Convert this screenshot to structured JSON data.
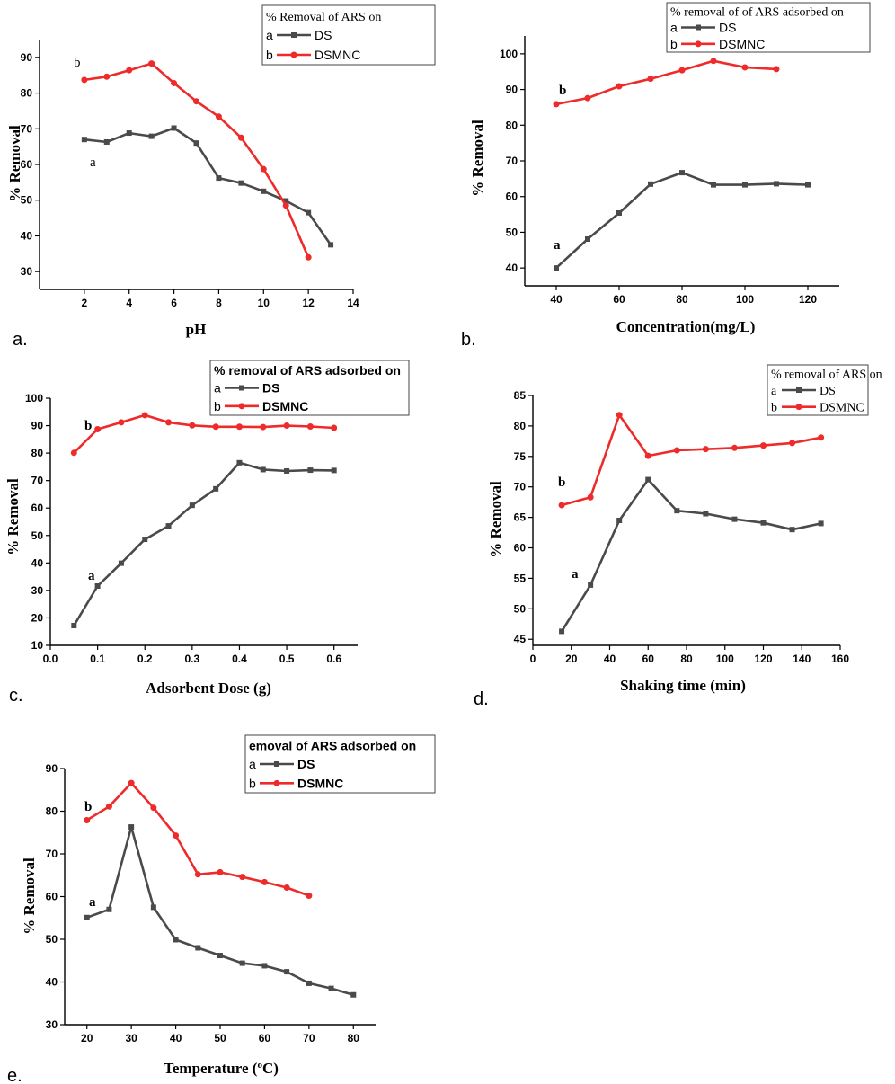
{
  "colors": {
    "ds": "#4a4a4a",
    "dsmnc": "#ee2a2a",
    "axis": "#000000"
  },
  "chart_data": [
    {
      "type": "line",
      "panel_label": "a.",
      "xlabel": "pH",
      "ylabel": "% Removal",
      "xlim": [
        0,
        14
      ],
      "ylim": [
        25,
        95
      ],
      "xticks": [
        2,
        4,
        6,
        8,
        10,
        12,
        14
      ],
      "yticks": [
        30,
        40,
        50,
        60,
        70,
        80,
        90
      ],
      "legend": {
        "title": "% Removal of ARS on",
        "position": "top-right",
        "entries": [
          {
            "key": "a",
            "label": "DS"
          },
          {
            "key": "b",
            "label": "DSMNC"
          }
        ]
      },
      "series": [
        {
          "name": "DS",
          "letter": "a",
          "marker": "square",
          "x": [
            2,
            3,
            4,
            5,
            6,
            7,
            8,
            9,
            10,
            11,
            12,
            13
          ],
          "values": [
            67,
            66.3,
            68.8,
            67.9,
            70.2,
            66,
            56.2,
            54.8,
            52.5,
            49.8,
            46.5,
            37.5
          ]
        },
        {
          "name": "DSMNC",
          "letter": "b",
          "marker": "circle",
          "x": [
            2,
            3,
            4,
            5,
            6,
            7,
            8,
            9,
            10,
            11,
            12
          ],
          "values": [
            83.7,
            84.6,
            86.4,
            88.3,
            82.8,
            77.7,
            73.4,
            67.5,
            58.7,
            48.5,
            34
          ]
        }
      ]
    },
    {
      "type": "line",
      "panel_label": "b.",
      "xlabel": "Concentration(mg/L)",
      "ylabel": "% Removal",
      "xlim": [
        30,
        130
      ],
      "ylim": [
        35,
        105
      ],
      "xticks": [
        40,
        60,
        80,
        100,
        120
      ],
      "yticks": [
        40,
        50,
        60,
        70,
        80,
        90,
        100
      ],
      "legend": {
        "title": "% removal of of ARS adsorbed on",
        "position": "top-right",
        "entries": [
          {
            "key": "a",
            "label": "DS"
          },
          {
            "key": "b",
            "label": "DSMNC"
          }
        ]
      },
      "series": [
        {
          "name": "DS",
          "letter": "a",
          "marker": "square",
          "x": [
            40,
            50,
            60,
            70,
            80,
            90,
            100,
            110,
            120
          ],
          "values": [
            40,
            48.1,
            55.4,
            63.5,
            66.7,
            63.3,
            63.3,
            63.6,
            63.3
          ]
        },
        {
          "name": "DSMNC",
          "letter": "b",
          "marker": "circle",
          "x": [
            40,
            50,
            60,
            70,
            80,
            90,
            100,
            110
          ],
          "values": [
            85.9,
            87.6,
            90.9,
            93,
            95.4,
            98,
            96.2,
            95.7
          ]
        }
      ]
    },
    {
      "type": "line",
      "panel_label": "c.",
      "xlabel": "Adsorbent Dose (g)",
      "ylabel": "% Removal",
      "xlim": [
        0,
        0.65
      ],
      "ylim": [
        10,
        100
      ],
      "xticks": [
        0.0,
        0.1,
        0.2,
        0.3,
        0.4,
        0.5,
        0.6
      ],
      "yticks": [
        10,
        20,
        30,
        40,
        50,
        60,
        70,
        80,
        90,
        100
      ],
      "legend": {
        "title": "% removal  of ARS adsorbed on",
        "position": "top-right",
        "entries": [
          {
            "key": "a",
            "label": "DS"
          },
          {
            "key": "b",
            "label": "DSMNC"
          }
        ]
      },
      "series": [
        {
          "name": "DS",
          "letter": "a",
          "marker": "square",
          "x": [
            0.05,
            0.1,
            0.15,
            0.2,
            0.25,
            0.3,
            0.35,
            0.4,
            0.45,
            0.5,
            0.55,
            0.6
          ],
          "values": [
            17.2,
            31.6,
            39.9,
            48.6,
            53.5,
            61,
            67,
            76.5,
            74,
            73.5,
            73.8,
            73.7
          ]
        },
        {
          "name": "DSMNC",
          "letter": "b",
          "marker": "circle",
          "x": [
            0.05,
            0.1,
            0.15,
            0.2,
            0.25,
            0.3,
            0.35,
            0.4,
            0.45,
            0.5,
            0.55,
            0.6
          ],
          "values": [
            80.1,
            88.7,
            91.2,
            93.8,
            91.2,
            90.1,
            89.6,
            89.6,
            89.5,
            90,
            89.7,
            89.2
          ]
        }
      ]
    },
    {
      "type": "line",
      "panel_label": "d.",
      "xlabel": "Shaking time (min)",
      "ylabel": "% Removal",
      "xlim": [
        0,
        160
      ],
      "ylim": [
        44,
        85
      ],
      "xticks": [
        0,
        20,
        40,
        60,
        80,
        100,
        120,
        140,
        160
      ],
      "yticks": [
        45,
        50,
        55,
        60,
        65,
        70,
        75,
        80,
        85
      ],
      "legend": {
        "title": "% removal of ARS on",
        "position": "top-right",
        "entries": [
          {
            "key": "a",
            "label": "DS"
          },
          {
            "key": "b",
            "label": "DSMNC"
          }
        ]
      },
      "series": [
        {
          "name": "DS",
          "letter": "a",
          "marker": "square",
          "x": [
            15,
            30,
            45,
            60,
            75,
            90,
            105,
            120,
            135,
            150
          ],
          "values": [
            46.3,
            53.9,
            64.5,
            71.2,
            66.1,
            65.6,
            64.7,
            64.1,
            63,
            64
          ]
        },
        {
          "name": "DSMNC",
          "letter": "b",
          "marker": "circle",
          "x": [
            15,
            30,
            45,
            60,
            75,
            90,
            105,
            120,
            135,
            150
          ],
          "values": [
            67,
            68.3,
            81.8,
            75.1,
            76,
            76.2,
            76.4,
            76.8,
            77.2,
            78.1
          ]
        }
      ]
    },
    {
      "type": "line",
      "panel_label": "e.",
      "xlabel": "Temperature (",
      "xlabel_superscript": "o",
      "xlabel_suffix": "C)",
      "ylabel": "% Removal",
      "xlim": [
        15,
        85
      ],
      "ylim": [
        30,
        90
      ],
      "xticks": [
        20,
        30,
        40,
        50,
        60,
        70,
        80
      ],
      "yticks": [
        30,
        40,
        50,
        60,
        70,
        80,
        90
      ],
      "legend": {
        "title": "emoval of ARS adsorbed on",
        "position": "top-right",
        "entries": [
          {
            "key": "a",
            "label": "DS"
          },
          {
            "key": "b",
            "label": "DSMNC"
          }
        ]
      },
      "series": [
        {
          "name": "DS",
          "letter": "a",
          "marker": "square",
          "x": [
            20,
            25,
            30,
            35,
            40,
            45,
            50,
            55,
            60,
            65,
            70,
            75,
            80
          ],
          "values": [
            55.1,
            57,
            76.3,
            57.5,
            49.9,
            48,
            46.2,
            44.4,
            43.8,
            42.4,
            39.7,
            38.5,
            37
          ]
        },
        {
          "name": "DSMNC",
          "letter": "b",
          "marker": "circle",
          "x": [
            20,
            25,
            30,
            35,
            40,
            45,
            50,
            55,
            60,
            65,
            70
          ],
          "values": [
            77.9,
            81.1,
            86.6,
            80.8,
            74.3,
            65.2,
            65.7,
            64.6,
            63.4,
            62.1,
            60.2
          ]
        }
      ]
    }
  ]
}
